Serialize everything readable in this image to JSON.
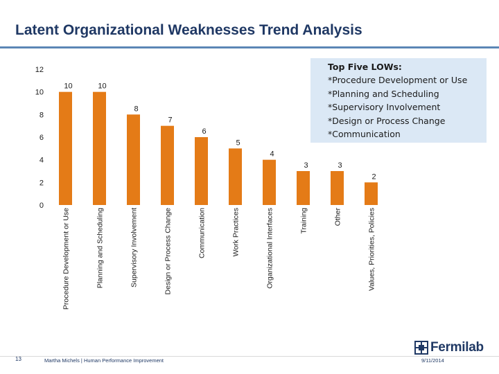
{
  "page": {
    "title": "Latent Organizational Weaknesses Trend Analysis"
  },
  "chart_data": {
    "type": "bar",
    "title": "",
    "xlabel": "",
    "ylabel": "",
    "categories": [
      "Procedure Development or Use",
      "Planning and Scheduling",
      "Supervisory Involvement",
      "Design or Process Change",
      "Communication",
      "Work Practices",
      "Organizational Interfaces",
      "Training",
      "Other",
      "Values, Priorities, Policies"
    ],
    "values": [
      10,
      10,
      8,
      7,
      6,
      5,
      4,
      3,
      3,
      2
    ],
    "ylim": [
      0,
      12
    ],
    "yticks": [
      0,
      2,
      4,
      6,
      8,
      10,
      12
    ],
    "bar_color": "#e47b17",
    "grid": false,
    "data_labels": true,
    "legend": "none"
  },
  "callout": {
    "title": "Top Five LOWs:",
    "items": [
      "*Procedure Development or Use",
      "*Planning and Scheduling",
      "*Supervisory Involvement",
      "*Design or Process Change",
      "*Communication"
    ],
    "background": "#dbe8f5"
  },
  "footer": {
    "page_number": "13",
    "author": "Martha Michels | Human Performance Improvement",
    "date": "9/11/2014",
    "logo_text": "Fermilab"
  }
}
